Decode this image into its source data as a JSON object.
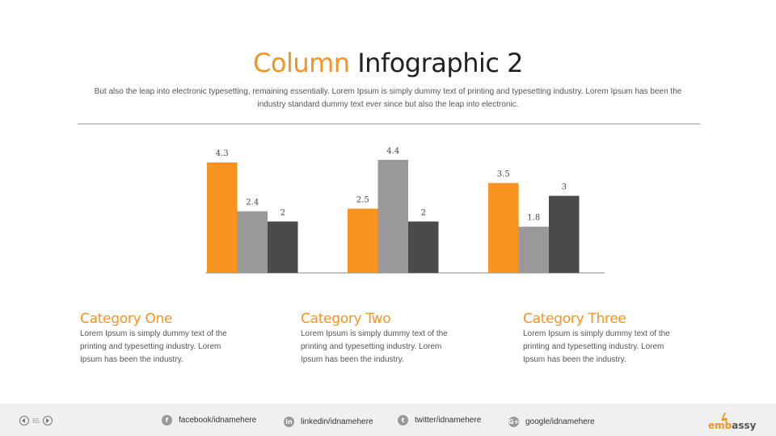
{
  "title": {
    "accent": "Column",
    "rest": " Infographic 2"
  },
  "subtitle": "But also the leap into electronic typesetting, remaining essentially. Lorem Ipsum is simply dummy text of printing and typesetting industry. Lorem Ipsum has been the industry standard dummy text ever since but also the leap into electronic.",
  "colors": {
    "accent": "#f7931e",
    "series2": "#999999",
    "series3": "#4a4a4a"
  },
  "chart_data": {
    "type": "bar",
    "categories": [
      "Category One",
      "Category Two",
      "Category Three"
    ],
    "series": [
      {
        "values": [
          4.3,
          2.5,
          3.5
        ],
        "color": "#f7931e"
      },
      {
        "values": [
          2.4,
          4.4,
          1.8
        ],
        "color": "#999999"
      },
      {
        "values": [
          2,
          2,
          3
        ],
        "color": "#4a4a4a"
      }
    ],
    "data_labels": [
      [
        "4.3",
        "2.5",
        "3.5"
      ],
      [
        "2.4",
        "4.4",
        "1.8"
      ],
      [
        "2",
        "2",
        "3"
      ]
    ],
    "ylim": [
      0,
      4.4
    ],
    "grid": false,
    "legend": "none"
  },
  "categories": [
    {
      "title": "Category One",
      "text": "Lorem Ipsum is simply dummy text of the printing and typesetting industry. Lorem Ipsum has been the industry."
    },
    {
      "title": "Category Two",
      "text": "Lorem Ipsum is simply dummy text of the printing and typesetting industry. Lorem Ipsum has been the industry."
    },
    {
      "title": "Category Three",
      "text": "Lorem Ipsum is simply dummy text of the printing and typesetting industry. Lorem Ipsum has been the industry."
    }
  ],
  "footer": {
    "page_number": "65",
    "social": [
      {
        "icon": "facebook-icon",
        "glyph": "f",
        "label": "facebook/idnamehere"
      },
      {
        "icon": "linkedin-icon",
        "glyph": "in",
        "label": "linkedin/idnamehere"
      },
      {
        "icon": "twitter-icon",
        "glyph": "t",
        "label": "twitter/idnamehere"
      },
      {
        "icon": "google-icon",
        "glyph": "G+",
        "label": "google/idnamehere"
      }
    ],
    "logo": {
      "accent": "emb",
      "rest": "assy"
    }
  }
}
